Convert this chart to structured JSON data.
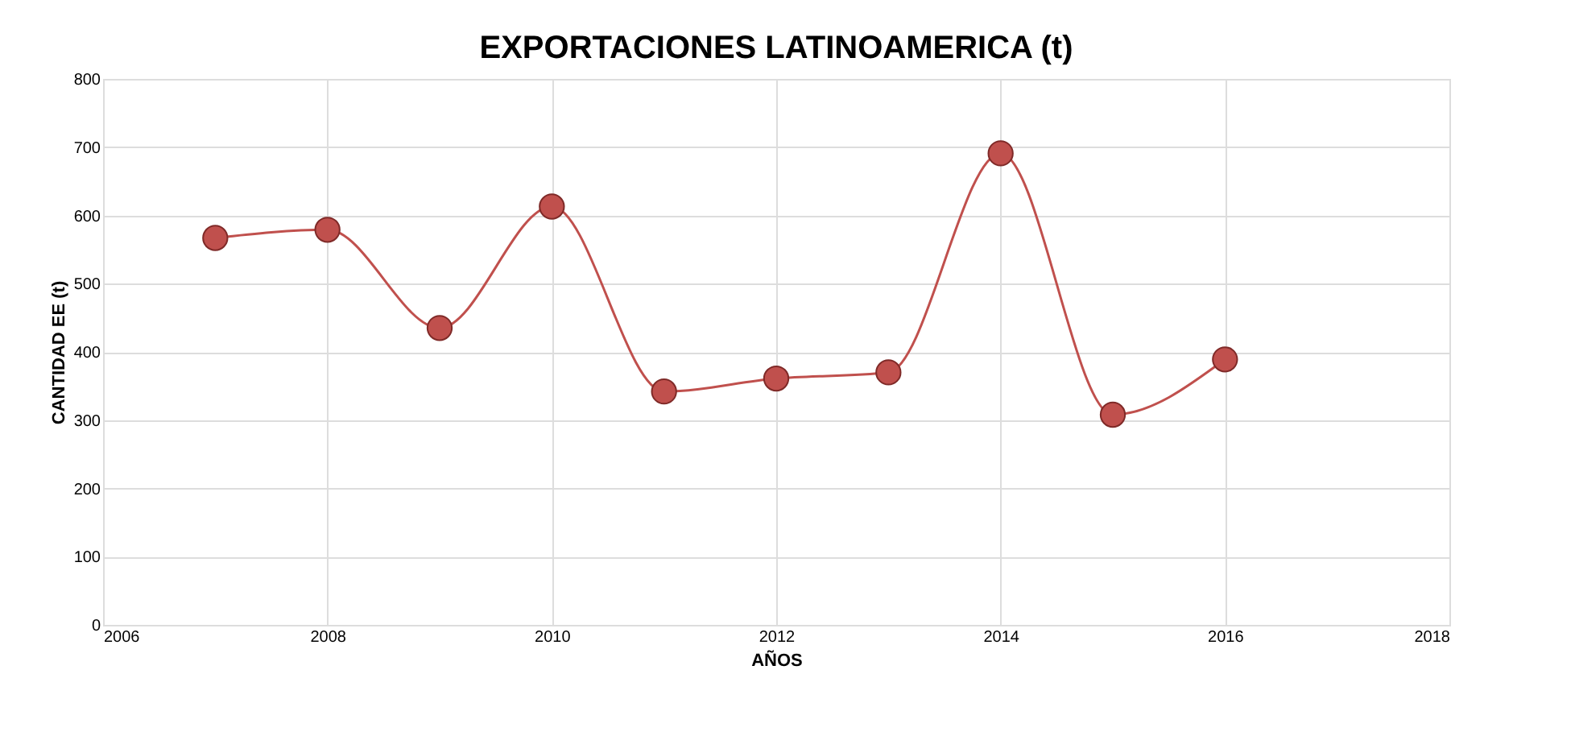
{
  "chart_data": {
    "type": "line",
    "title": "EXPORTACIONES LATINOAMERICA (t)",
    "xlabel": "AÑOS",
    "ylabel": "CANTIDAD EE (t)",
    "x": [
      2007,
      2008,
      2009,
      2010,
      2011,
      2012,
      2013,
      2014,
      2015,
      2016
    ],
    "series": [
      {
        "color": "#c0504d",
        "values": [
          567,
          579,
          435,
          613,
          342,
          361,
          370,
          691,
          308,
          389
        ]
      }
    ],
    "xlim": [
      2006,
      2018
    ],
    "xticks": [
      2006,
      2008,
      2010,
      2012,
      2014,
      2016,
      2018
    ],
    "ylim": [
      0,
      800
    ],
    "yticks": [
      0,
      100,
      200,
      300,
      400,
      500,
      600,
      700,
      800
    ],
    "grid": true,
    "marker": "circle",
    "line_style": "solid"
  }
}
